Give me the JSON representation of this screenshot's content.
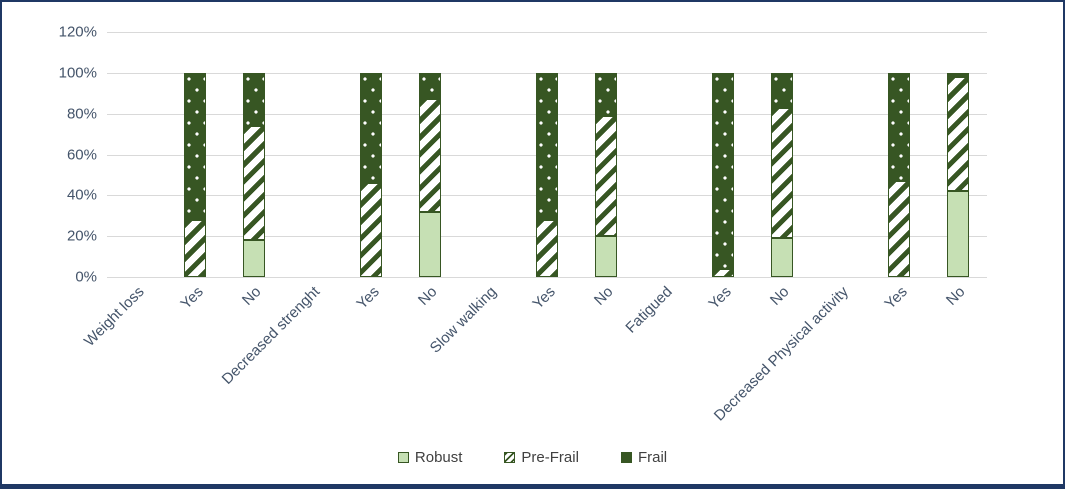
{
  "chart_data": {
    "type": "bar",
    "subtype": "stacked-100",
    "title": "",
    "xlabel": "",
    "ylabel": "",
    "y_axis": {
      "min": 0,
      "max": 120,
      "tick_step": 20,
      "ticks": [
        "0%",
        "20%",
        "40%",
        "60%",
        "80%",
        "100%",
        "120%"
      ],
      "grid": true
    },
    "series_names": [
      "Robust",
      "Pre-Frail",
      "Frail"
    ],
    "colors": {
      "robust": "#c6e0b4",
      "prefrail_background": "#ffffff",
      "prefrail_stripe": "#375623",
      "frail": "#375623",
      "segment_border": "#375623",
      "gridline": "#d9d9d9",
      "axis_text": "#44546a",
      "frame_border": "#1f3864"
    },
    "categories": [
      {
        "label": "Weight loss",
        "values": null
      },
      {
        "label": "Yes",
        "values": [
          0,
          28,
          72
        ]
      },
      {
        "label": "No",
        "values": [
          18,
          56,
          26
        ]
      },
      {
        "label": "Decreased strenght",
        "values": null
      },
      {
        "label": "Yes",
        "values": [
          0,
          46,
          54
        ]
      },
      {
        "label": "No",
        "values": [
          32,
          55,
          13
        ]
      },
      {
        "label": "Slow walking",
        "values": null
      },
      {
        "label": "Yes",
        "values": [
          0,
          28,
          72
        ]
      },
      {
        "label": "No",
        "values": [
          20,
          59,
          21
        ]
      },
      {
        "label": "Fatigued",
        "values": null
      },
      {
        "label": "Yes",
        "values": [
          0,
          4,
          96
        ]
      },
      {
        "label": "No",
        "values": [
          19,
          64,
          17
        ]
      },
      {
        "label": "Decreased Physical activity",
        "values": null
      },
      {
        "label": "Yes",
        "values": [
          0,
          47,
          53
        ]
      },
      {
        "label": "No",
        "values": [
          42,
          56,
          2
        ]
      }
    ],
    "legend": {
      "position": "bottom",
      "items": [
        "Robust",
        "Pre-Frail",
        "Frail"
      ]
    }
  }
}
